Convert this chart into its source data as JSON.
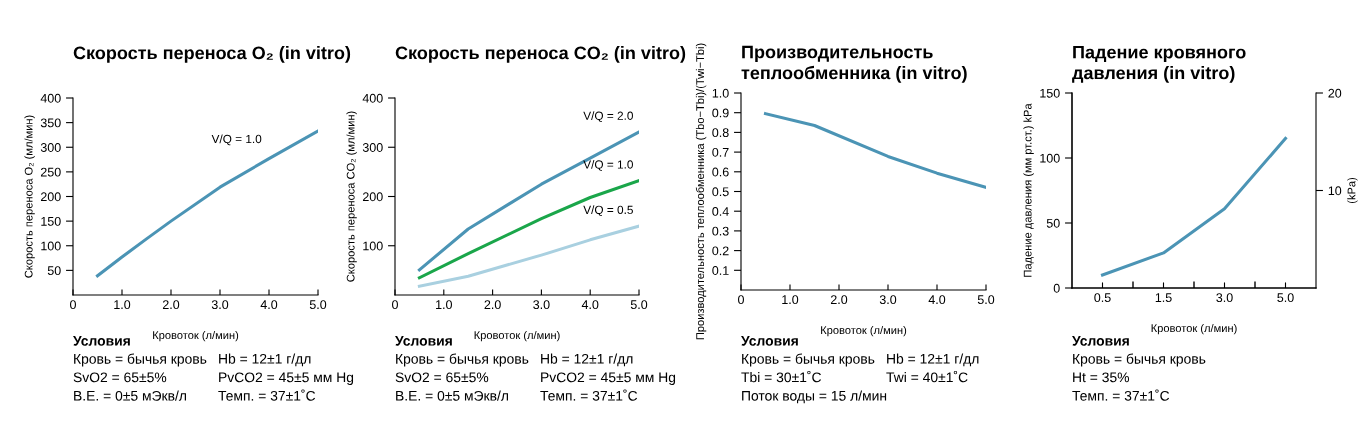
{
  "chart_data": [
    {
      "type": "line",
      "title": "Скорость переноса O₂ (in vitro)",
      "xlabel": "Кровоток (л/мин)",
      "ylabel": "Скорость переноса O₂ (мл/мин)",
      "x": [
        0.5,
        1.0,
        1.5,
        2.0,
        3.0,
        4.0,
        5.0
      ],
      "series": [
        {
          "name": "V/Q = 1.0",
          "color": "#4b94b5",
          "values": [
            39,
            77,
            114,
            150,
            219,
            277,
            333
          ]
        }
      ],
      "xlim": [
        0,
        5.0
      ],
      "xticks": [
        0,
        {
          "value": 1,
          "label": "1.0"
        },
        {
          "value": 2,
          "label": "2.0"
        },
        {
          "value": 3,
          "label": "3.0"
        },
        {
          "value": 4,
          "label": "4.0"
        },
        {
          "value": 5,
          "label": "5.0"
        }
      ],
      "ylim": [
        0,
        400
      ],
      "yticks": [
        50,
        100,
        150,
        200,
        250,
        300,
        350,
        400
      ],
      "grid": false,
      "legend": false,
      "marker": "none",
      "line_style": "solid",
      "annotations": [
        "Условия",
        "Кровь = бычья кровь",
        "Hb = 12±1 г/дл",
        "SvO2 = 65±5%",
        "PvCO2 = 45±5 мм Hg",
        "B.E. = 0±5 мЭкв/л",
        "Темп. = 37±1˚C"
      ]
    },
    {
      "type": "line",
      "title": "Скорость переноса CO₂ (in vitro)",
      "xlabel": "Кровоток (л/мин)",
      "ylabel": "Скорость переноса CO₂ (мл/мин)",
      "x": [
        0.5,
        1.5,
        3.0,
        4.0,
        5.0
      ],
      "series": [
        {
          "name": "V/Q = 2.0",
          "color": "#4b94b5",
          "values": [
            51,
            134,
            225,
            278,
            331
          ]
        },
        {
          "name": "V/Q = 1.0",
          "color": "#1aa64a",
          "values": [
            35,
            84,
            155,
            198,
            232
          ]
        },
        {
          "name": "V/Q = 0.5",
          "color": "#a9d0e0",
          "values": [
            18,
            38,
            81,
            112,
            140
          ]
        }
      ],
      "xlim": [
        0,
        5.0
      ],
      "xticks": [
        0,
        {
          "value": 1,
          "label": "1.0"
        },
        {
          "value": 2,
          "label": "2.0"
        },
        {
          "value": 3,
          "label": "3.0"
        },
        {
          "value": 4,
          "label": "4.0"
        },
        {
          "value": 5,
          "label": "5.0"
        }
      ],
      "ylim": [
        0,
        400
      ],
      "yticks": [
        100,
        200,
        300,
        400
      ],
      "grid": false,
      "legend": false,
      "marker": "none",
      "line_style": "solid",
      "annotations": [
        "Условия",
        "Кровь = бычья кровь",
        "Hb = 12±1 г/дл",
        "SvO2 = 65±5%",
        "PvCO2 = 45±5 мм Hg",
        "B.E. = 0±5 мЭкв/л",
        "Темп. = 37±1˚C"
      ]
    },
    {
      "type": "line",
      "title": "Производительность\nтеплообменника (in vitro)",
      "xlabel": "Кровоток (л/мин)",
      "ylabel": "Производительность теплообменника (Tbo−Tbi)/(Twi−Tbi)",
      "x": [
        0.5,
        1.5,
        3.0,
        4.0,
        5.0
      ],
      "series": [
        {
          "color": "#4b94b5",
          "values": [
            0.895,
            0.835,
            0.678,
            0.593,
            0.521
          ]
        }
      ],
      "xlim": [
        0,
        5.0
      ],
      "xticks": [
        0,
        {
          "value": 1,
          "label": "1.0"
        },
        {
          "value": 2,
          "label": "2.0"
        },
        {
          "value": 3,
          "label": "3.0"
        },
        {
          "value": 4,
          "label": "4.0"
        },
        {
          "value": 5,
          "label": "5.0"
        }
      ],
      "ylim": [
        0,
        1.0
      ],
      "yticks": [
        0.1,
        0.2,
        0.3,
        0.4,
        0.5,
        0.6,
        0.7,
        0.8,
        0.9,
        {
          "value": 1.0,
          "label": "1.0"
        }
      ],
      "grid": false,
      "legend": false,
      "marker": "none",
      "line_style": "solid",
      "annotations": [
        "Условия",
        "Кровь = бычья кровь",
        "Hb = 12±1 г/дл",
        "Tbi = 30±1˚C",
        "Twi = 40±1˚C",
        "Поток воды = 15 л/мин"
      ]
    },
    {
      "type": "line",
      "title": "Падение кровяного\nдавления (in vitro)",
      "xlabel": "Кровоток (л/мин)",
      "ylabel": "Падение давления (мм рт.ст.) kPa",
      "y2label": "(kPa)",
      "categories": [
        "0.5",
        "1.5",
        "3.0",
        "5.0"
      ],
      "series": [
        {
          "color": "#4b94b5",
          "values": [
            10,
            27,
            61,
            115
          ]
        }
      ],
      "ylim": [
        0,
        150
      ],
      "yticks": [
        {
          "value": 0,
          "label": "0"
        },
        50,
        100,
        150
      ],
      "y2lim": [
        0,
        20
      ],
      "y2ticks": [
        10,
        20
      ],
      "grid": false,
      "legend": false,
      "marker": "none",
      "line_style": "solid",
      "annotations": [
        "Условия",
        "Кровь = бычья кровь",
        "Ht = 35%",
        "Темп. = 37±1˚C"
      ]
    }
  ]
}
